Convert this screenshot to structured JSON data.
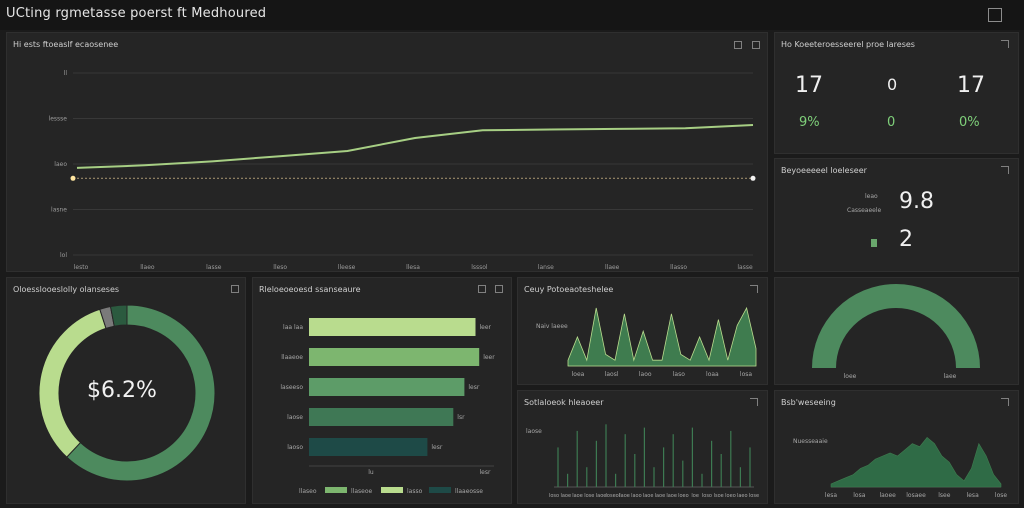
{
  "app": {
    "title": "UCting rgmetasse poerst ft Medhoured"
  },
  "line_panel": {
    "title": "Hi ests ftoeaslf ecaosenee",
    "y_labels": [
      "ll",
      "lessse",
      "laeo",
      "lasne",
      "lol"
    ],
    "x_labels": [
      "lesto",
      "llaeo",
      "lasse",
      "lleso",
      "lleese",
      "llesa",
      "lsssol",
      "lanse",
      "llaee",
      "llasso",
      "lasse"
    ],
    "chart_data": {
      "type": "line",
      "series": [
        {
          "values": [
            0.67,
            0.69,
            0.72,
            0.76,
            0.8,
            0.9,
            0.96,
            0.965,
            0.97,
            0.975,
            1.0
          ]
        }
      ],
      "reference": 0.59,
      "ylim": [
        0,
        1.4
      ]
    }
  },
  "kpi_panel": {
    "title": "Ho Koeeteroesseerel proe lareses",
    "values": [
      "17",
      "0",
      "17"
    ],
    "percents": [
      "9%",
      "0",
      "0%"
    ]
  },
  "metric_panel": {
    "title": "Beyoeeeeel loeleseer",
    "labels": [
      "leao",
      "Casseaeele"
    ],
    "value1": "9.8",
    "value2": "2"
  },
  "donut_panel": {
    "title": "Oloesslooeslolly olanseses",
    "center": "$6.2%",
    "chart_data": {
      "type": "pie",
      "values": [
        62,
        33,
        2,
        3
      ],
      "colors": [
        "#4d8a5e",
        "#b9dc8e",
        "#7a7a7a",
        "#2b5a3f"
      ]
    }
  },
  "hbar_panel": {
    "title": "Rleloeoeoesd ssanseaure",
    "y_labels": [
      "laa laa",
      "llaaeoe",
      "laseeso",
      "laose",
      "laoso"
    ],
    "right_labels": [
      "leer",
      "leer",
      "lesr",
      "lsr",
      "lesr"
    ],
    "axis_labels": [
      "lu",
      "lesr"
    ],
    "legend": [
      "llaseo",
      "llaseoe",
      "lasso",
      "llaaeosse"
    ],
    "chart_data": {
      "type": "bar",
      "values": [
        0.9,
        0.92,
        0.84,
        0.78,
        0.64
      ],
      "colors": [
        "#b9dc8e",
        "#7db66f",
        "#5d9c68",
        "#3f7855",
        "#1e4a47"
      ],
      "xlim": [
        0,
        1
      ]
    }
  },
  "spike_panel": {
    "title": "Ceuy Potoeaoteshelee",
    "y_label": "Naiv laeee",
    "x_labels": [
      "loea",
      "laosl",
      "laoo",
      "laso",
      "loaa",
      "losa"
    ],
    "chart_data": {
      "type": "area",
      "values": [
        0.1,
        0.5,
        0.1,
        1.0,
        0.2,
        0.1,
        0.9,
        0.1,
        0.6,
        0.1,
        0.1,
        0.9,
        0.2,
        0.1,
        0.5,
        0.1,
        0.8,
        0.1,
        0.7,
        1.0,
        0.3
      ]
    }
  },
  "gauge_panel": {
    "labels": [
      "loee",
      "laee"
    ],
    "chart_data": {
      "type": "pie",
      "values": [
        100
      ],
      "colors": [
        "#4d8a5e"
      ]
    }
  },
  "lines_panel": {
    "title": "Sotlaloeok hleaoeer",
    "y_label": "laose",
    "x_labels": [
      "loso",
      "laoe",
      "laoe",
      "lose",
      "laoe",
      "loseol",
      "laoe",
      "laoo",
      "laoe",
      "laoe",
      "laoe",
      "loeo",
      "loe",
      "loso",
      "lsoe",
      "loeo",
      "laeo",
      "lose"
    ],
    "chart_data": {
      "type": "bar",
      "values": [
        0.6,
        0.2,
        0.85,
        0.3,
        0.7,
        0.95,
        0.2,
        0.8,
        0.5,
        0.9,
        0.3,
        0.6,
        0.8,
        0.4,
        0.9,
        0.2,
        0.7,
        0.5,
        0.85,
        0.3,
        0.6
      ]
    }
  },
  "area_panel": {
    "title": "Bsb'weseeing",
    "y_label": "Nuesseaaie",
    "x_labels": [
      "lesa",
      "losa",
      "laoee",
      "losaee",
      "lsee",
      "lesa",
      "lose"
    ],
    "chart_data": {
      "type": "area",
      "values": [
        0.05,
        0.1,
        0.15,
        0.2,
        0.3,
        0.35,
        0.45,
        0.5,
        0.55,
        0.5,
        0.6,
        0.7,
        0.65,
        0.8,
        0.7,
        0.5,
        0.4,
        0.2,
        0.1,
        0.3,
        0.7,
        0.5,
        0.2,
        0.05
      ]
    }
  }
}
